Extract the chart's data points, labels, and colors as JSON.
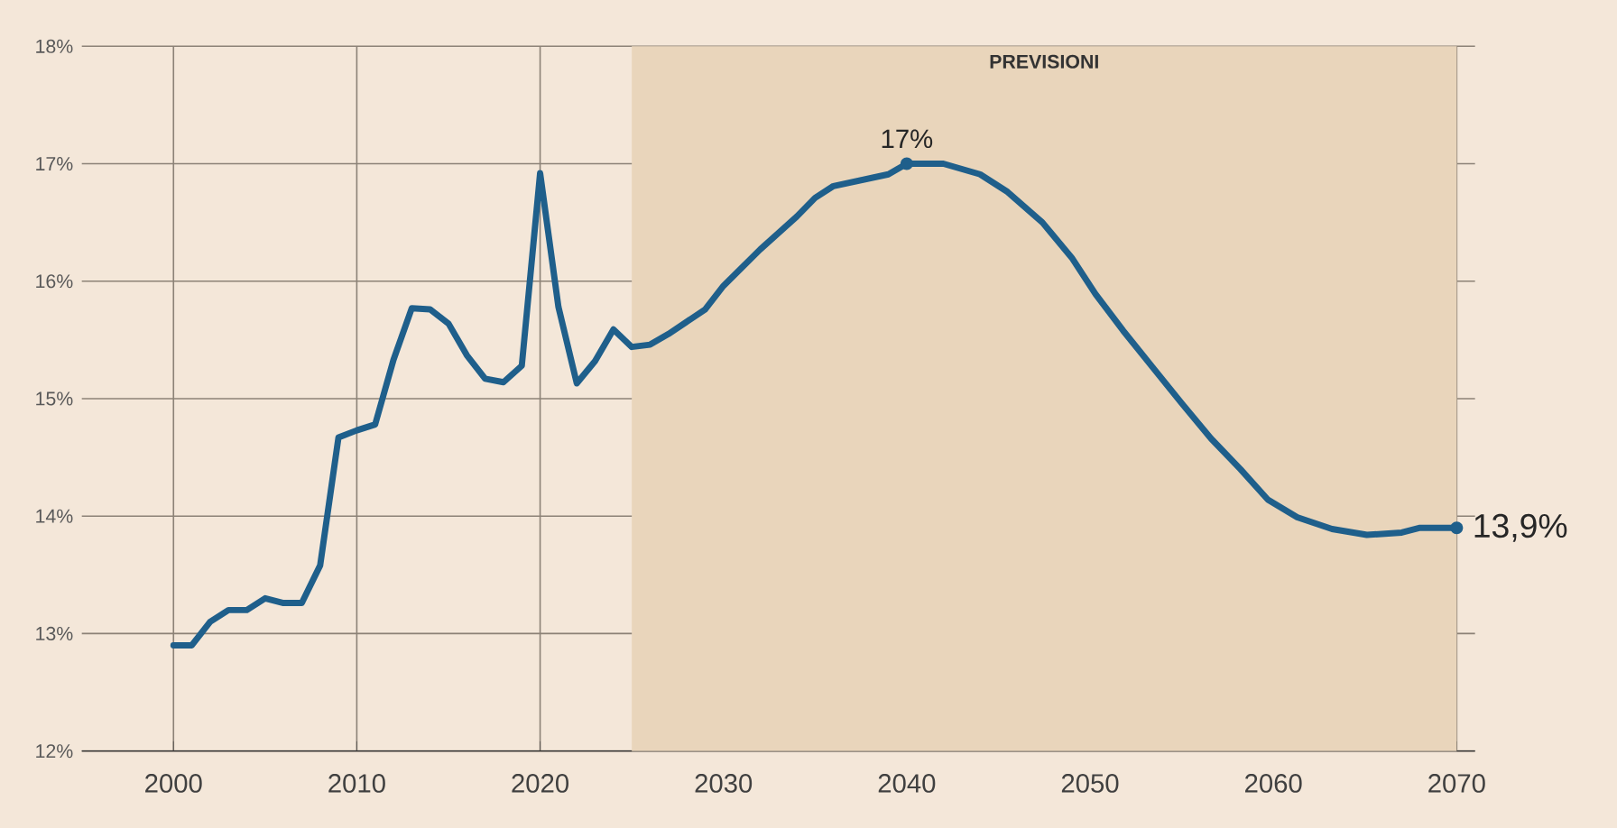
{
  "chart_data": {
    "type": "line",
    "x": [
      2000,
      2001,
      2002,
      2003,
      2004,
      2005,
      2006,
      2007,
      2008,
      2009,
      2010,
      2011,
      2012,
      2013,
      2014,
      2015,
      2016,
      2017,
      2018,
      2019,
      2020,
      2021,
      2022,
      2023,
      2024,
      2025,
      2026,
      2027,
      2029,
      2030,
      2032,
      2034,
      2035,
      2036,
      2039,
      2040,
      2042,
      2044,
      2045.5,
      2047.4,
      2049,
      2050.3,
      2051.8,
      2053.4,
      2055,
      2056.6,
      2058.2,
      2059.7,
      2061.3,
      2063.2,
      2065.1,
      2067,
      2068,
      2070
    ],
    "series": [
      {
        "color": "#1f5f8b",
        "values": [
          12.9,
          12.9,
          13.1,
          13.2,
          13.2,
          13.3,
          13.26,
          13.26,
          13.58,
          14.67,
          14.73,
          14.78,
          15.33,
          15.77,
          15.76,
          15.64,
          15.37,
          15.17,
          15.14,
          15.28,
          16.92,
          15.78,
          15.13,
          15.32,
          15.59,
          15.44,
          15.46,
          15.55,
          15.76,
          15.96,
          16.27,
          16.55,
          16.71,
          16.81,
          16.91,
          17,
          17,
          16.91,
          16.76,
          16.5,
          16.2,
          15.89,
          15.58,
          15.27,
          14.96,
          14.66,
          14.4,
          14.14,
          13.99,
          13.89,
          13.84,
          13.86,
          13.9,
          13.9
        ]
      }
    ],
    "xlim": [
      1995,
      2071
    ],
    "ylim": [
      12,
      18
    ],
    "xticks": [
      2000,
      2010,
      2020,
      2030,
      2040,
      2050,
      2060,
      2070
    ],
    "yticks": [
      {
        "value": 12,
        "label": "12%"
      },
      {
        "value": 13,
        "label": "13%"
      },
      {
        "value": 14,
        "label": "14%"
      },
      {
        "value": 15,
        "label": "15%"
      },
      {
        "value": 16,
        "label": "16%"
      },
      {
        "value": 17,
        "label": "17%"
      },
      {
        "value": 18,
        "label": "18%"
      }
    ],
    "grid": true,
    "bands": [
      {
        "axis": "x",
        "from": 2025,
        "to": 2070,
        "label": "PREVISIONI",
        "color": "#e9d5bb"
      }
    ],
    "annotations": [
      {
        "text": "17%",
        "x": 2040,
        "y": 17
      },
      {
        "text": "13,9%",
        "x": 2070,
        "y": 13.9
      }
    ]
  }
}
